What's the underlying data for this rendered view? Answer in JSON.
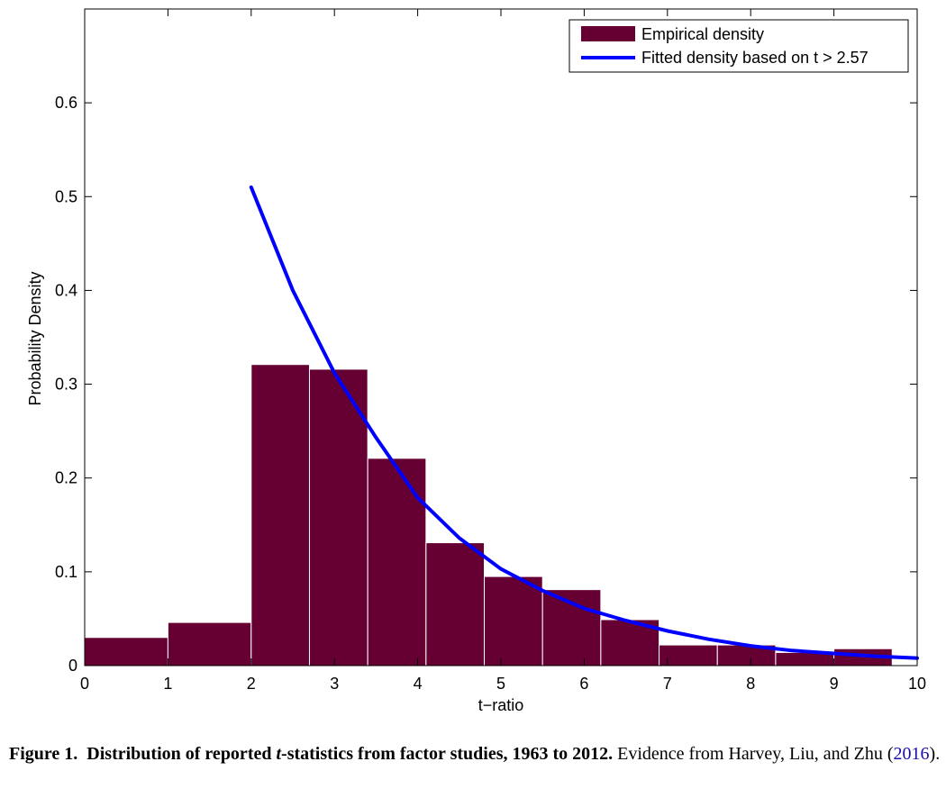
{
  "chart_data": {
    "type": "bar",
    "xlabel": "t−ratio",
    "ylabel": "Probability Density",
    "xlim": [
      0,
      10
    ],
    "ylim": [
      0,
      0.7
    ],
    "xticks": [
      "0",
      "1",
      "2",
      "3",
      "4",
      "5",
      "6",
      "7",
      "8",
      "9",
      "10"
    ],
    "yticks": [
      "0",
      "0.1",
      "0.2",
      "0.3",
      "0.4",
      "0.5",
      "0.6"
    ],
    "bar_color": "#660033",
    "line_color": "#0000ff",
    "grid": false,
    "legend_position": "top-right",
    "series": [
      {
        "name": "Empirical density",
        "type": "bar",
        "bins": [
          {
            "x0": 0.0,
            "x1": 1.0,
            "value": 0.03
          },
          {
            "x0": 1.0,
            "x1": 2.0,
            "value": 0.046
          },
          {
            "x0": 2.0,
            "x1": 2.7,
            "value": 0.321
          },
          {
            "x0": 2.7,
            "x1": 3.4,
            "value": 0.316
          },
          {
            "x0": 3.4,
            "x1": 4.1,
            "value": 0.221
          },
          {
            "x0": 4.1,
            "x1": 4.8,
            "value": 0.131
          },
          {
            "x0": 4.8,
            "x1": 5.5,
            "value": 0.095
          },
          {
            "x0": 5.5,
            "x1": 6.2,
            "value": 0.081
          },
          {
            "x0": 6.2,
            "x1": 6.9,
            "value": 0.049
          },
          {
            "x0": 6.9,
            "x1": 7.6,
            "value": 0.022
          },
          {
            "x0": 7.6,
            "x1": 8.3,
            "value": 0.022
          },
          {
            "x0": 8.3,
            "x1": 9.0,
            "value": 0.014
          },
          {
            "x0": 9.0,
            "x1": 9.7,
            "value": 0.018
          }
        ]
      },
      {
        "name": "Fitted density based on t > 2.57",
        "type": "line",
        "x": [
          2.0,
          2.5,
          3.0,
          3.5,
          4.0,
          4.5,
          5.0,
          5.5,
          6.0,
          6.5,
          7.0,
          7.5,
          8.0,
          8.5,
          9.0,
          9.5,
          10.0
        ],
        "y": [
          0.51,
          0.4,
          0.312,
          0.243,
          0.179,
          0.136,
          0.103,
          0.08,
          0.061,
          0.048,
          0.037,
          0.028,
          0.021,
          0.016,
          0.013,
          0.01,
          0.008
        ]
      }
    ]
  },
  "caption": {
    "figure_label": "Figure 1.",
    "title_before": "Distribution of reported ",
    "title_italic": "t",
    "title_after": "-statistics from factor studies, 1963 to 2012.",
    "evidence_before": "Evidence from Harvey, Liu, and Zhu (",
    "evidence_year": "2016",
    "evidence_after": ")."
  }
}
